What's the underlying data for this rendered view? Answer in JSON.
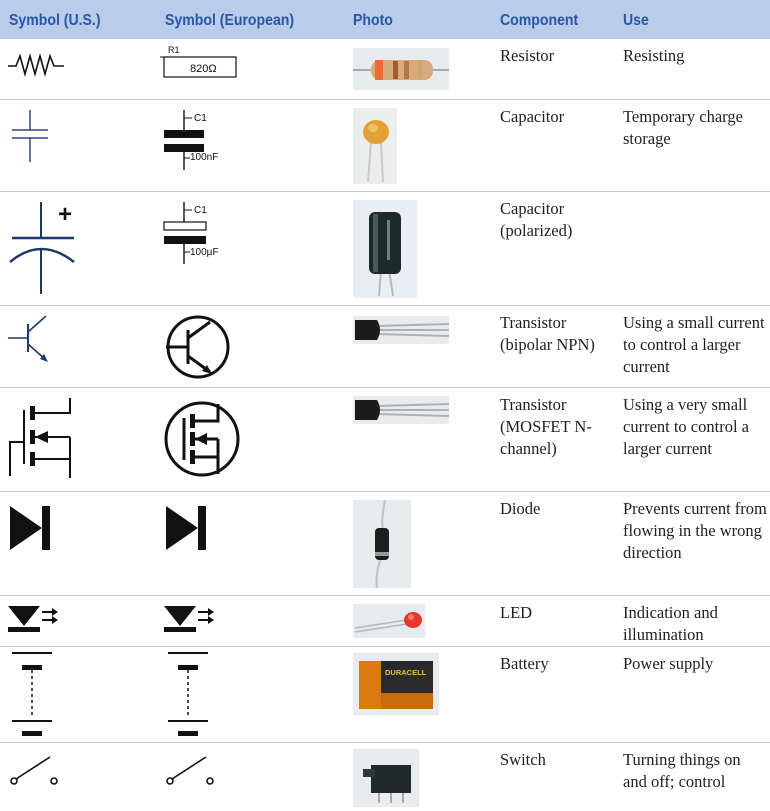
{
  "header": {
    "symbol_us": "Symbol (U.S.)",
    "symbol_eu": "Symbol (European)",
    "photo": "Photo",
    "component": "Component",
    "use": "Use"
  },
  "colors": {
    "header_bg": "#b9cce9",
    "header_text": "#2a56a6",
    "row_divider": "#c9c9c9"
  },
  "rows": [
    {
      "component": "Resistor",
      "use": "Resisting",
      "eu_label": "R1",
      "eu_value": "820Ω",
      "icon_us": "resistor-zigzag-icon",
      "icon_eu": "resistor-box-icon"
    },
    {
      "component": "Capacitor",
      "use": "Temporary charge storage",
      "eu_label": "C1",
      "eu_value": "100nF",
      "icon_us": "capacitor-icon",
      "icon_eu": "capacitor-icon"
    },
    {
      "component": "Capacitor (polarized)",
      "use": "",
      "eu_label": "C1",
      "eu_value": "100μF",
      "plus": "+",
      "icon_us": "polarized-capacitor-icon",
      "icon_eu": "polarized-capacitor-icon"
    },
    {
      "component": "Transistor (bipolar NPN)",
      "use": "Using a small current to control a larger current",
      "icon_us": "npn-transistor-icon",
      "icon_eu": "npn-transistor-circle-icon"
    },
    {
      "component": "Transistor (MOSFET N-channel)",
      "use": "Using a very small current to control a larger current",
      "icon_us": "mosfet-icon",
      "icon_eu": "mosfet-circle-icon"
    },
    {
      "component": "Diode",
      "use": "Prevents current from flowing in the wrong direction",
      "icon_us": "diode-icon",
      "icon_eu": "diode-icon"
    },
    {
      "component": "LED",
      "use": "Indication and illumination",
      "icon_us": "led-icon",
      "icon_eu": "led-icon"
    },
    {
      "component": "Battery",
      "use": "Power supply",
      "photo_label": "DURACELL",
      "icon_us": "battery-icon",
      "icon_eu": "battery-icon"
    },
    {
      "component": "Switch",
      "use": "Turning things on and off; control",
      "icon_us": "switch-icon",
      "icon_eu": "switch-icon"
    }
  ]
}
